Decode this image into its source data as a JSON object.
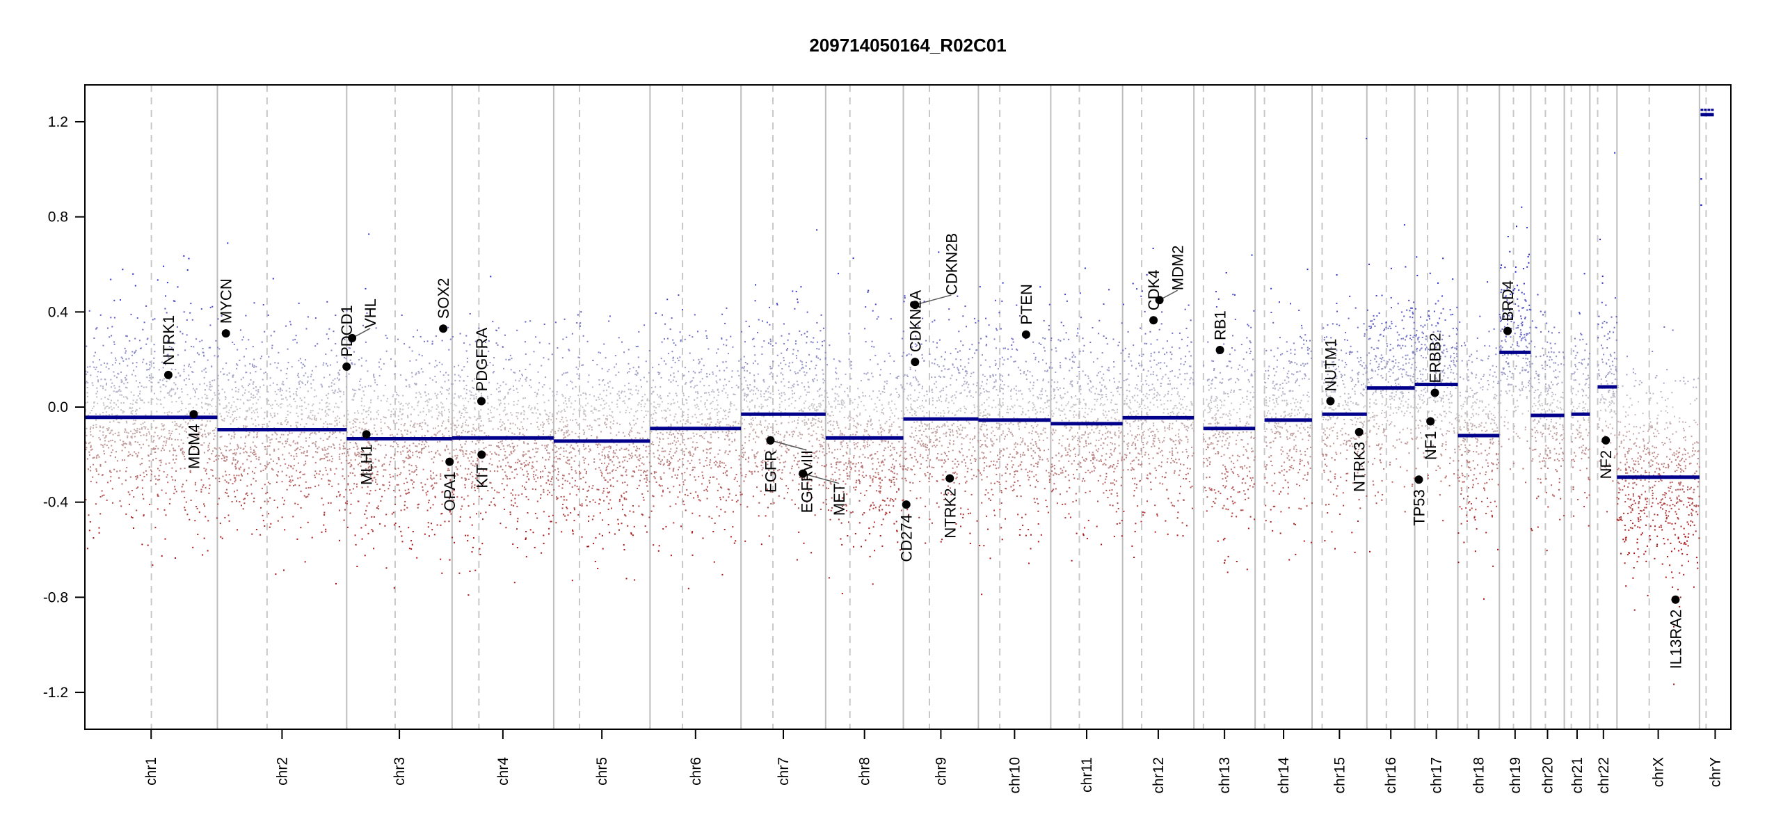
{
  "chart_data": {
    "type": "scatter",
    "title": "209714050164_R02C01",
    "xlabel": "",
    "ylabel": "",
    "ylim": [
      -1.355,
      1.355
    ],
    "yticks": [
      -1.2,
      -0.8,
      -0.4,
      0.0,
      0.4,
      0.8,
      1.2
    ],
    "ytick_labels": [
      "-1.2",
      "-0.8",
      "-0.4",
      "0.0",
      "0.4",
      "0.8",
      "1.2"
    ],
    "grid": false,
    "colors": {
      "gain": "#2828C8",
      "loss": "#AA1414",
      "neutral": "#C8C8C8",
      "segment": "#00008B",
      "gene_point": "#000000",
      "chrom_line": "#BEBEBE"
    },
    "chromosomes": [
      {
        "name": "chr1",
        "length_mb": 249,
        "centromere_mb": 125,
        "segment_mean": -0.043,
        "data_start_mb": 0
      },
      {
        "name": "chr2",
        "length_mb": 243,
        "centromere_mb": 93.3,
        "segment_mean": -0.095,
        "data_start_mb": 0
      },
      {
        "name": "chr3",
        "length_mb": 198,
        "centromere_mb": 91,
        "segment_mean": -0.133,
        "data_start_mb": 0
      },
      {
        "name": "chr4",
        "length_mb": 191,
        "centromere_mb": 50.4,
        "segment_mean": -0.13,
        "data_start_mb": 0
      },
      {
        "name": "chr5",
        "length_mb": 181,
        "centromere_mb": 48.4,
        "segment_mean": -0.143,
        "data_start_mb": 0
      },
      {
        "name": "chr6",
        "length_mb": 171,
        "centromere_mb": 61,
        "segment_mean": -0.09,
        "data_start_mb": 0
      },
      {
        "name": "chr7",
        "length_mb": 159,
        "centromere_mb": 59.9,
        "segment_mean": -0.03,
        "data_start_mb": 0
      },
      {
        "name": "chr8",
        "length_mb": 146,
        "centromere_mb": 45.6,
        "segment_mean": -0.13,
        "data_start_mb": 0
      },
      {
        "name": "chr9",
        "length_mb": 141,
        "centromere_mb": 49,
        "segment_mean": -0.05,
        "data_start_mb": 0
      },
      {
        "name": "chr10",
        "length_mb": 136,
        "centromere_mb": 40.2,
        "segment_mean": -0.055,
        "data_start_mb": 0
      },
      {
        "name": "chr11",
        "length_mb": 135,
        "centromere_mb": 53.7,
        "segment_mean": -0.07,
        "data_start_mb": 0
      },
      {
        "name": "chr12",
        "length_mb": 134,
        "centromere_mb": 35.8,
        "segment_mean": -0.045,
        "data_start_mb": 0
      },
      {
        "name": "chr13",
        "length_mb": 115,
        "centromere_mb": 17.9,
        "segment_mean": -0.09,
        "data_start_mb": 17.9
      },
      {
        "name": "chr14",
        "length_mb": 107,
        "centromere_mb": 17.6,
        "segment_mean": -0.055,
        "data_start_mb": 17.6
      },
      {
        "name": "chr15",
        "length_mb": 103,
        "centromere_mb": 19,
        "segment_mean": -0.03,
        "data_start_mb": 19
      },
      {
        "name": "chr16",
        "length_mb": 90,
        "centromere_mb": 36.6,
        "segment_mean": 0.08,
        "data_start_mb": 0
      },
      {
        "name": "chr17",
        "length_mb": 81,
        "centromere_mb": 24,
        "segment_mean": 0.095,
        "data_start_mb": 0
      },
      {
        "name": "chr18",
        "length_mb": 78,
        "centromere_mb": 17.2,
        "segment_mean": -0.12,
        "data_start_mb": 0
      },
      {
        "name": "chr19",
        "length_mb": 59,
        "centromere_mb": 26.5,
        "segment_mean": 0.23,
        "data_start_mb": 0
      },
      {
        "name": "chr20",
        "length_mb": 63,
        "centromere_mb": 27.5,
        "segment_mean": -0.035,
        "data_start_mb": 0
      },
      {
        "name": "chr21",
        "length_mb": 48,
        "centromere_mb": 13.2,
        "segment_mean": -0.03,
        "data_start_mb": 13.2
      },
      {
        "name": "chr22",
        "length_mb": 51,
        "centromere_mb": 14.7,
        "segment_mean": 0.085,
        "data_start_mb": 14.7
      },
      {
        "name": "chrX",
        "length_mb": 155,
        "centromere_mb": 60.6,
        "segment_mean": -0.295,
        "data_start_mb": 0
      },
      {
        "name": "chrY",
        "length_mb": 59,
        "centromere_mb": 12.5,
        "segment_mean": 1.23,
        "segment_mean_2": 1.25,
        "data_start_mb": 2,
        "data_end_mb": 27
      }
    ],
    "genes": [
      {
        "name": "NTRK1",
        "chrom": "chr1",
        "pos_mb": 156.8,
        "value": 0.135
      },
      {
        "name": "MDM4",
        "chrom": "chr1",
        "pos_mb": 204.5,
        "value": -0.03
      },
      {
        "name": "MYCN",
        "chrom": "chr2",
        "pos_mb": 16,
        "value": 0.31
      },
      {
        "name": "PDCD1",
        "chrom": "chr2",
        "pos_mb": 242.8,
        "value": 0.17
      },
      {
        "name": "VHL",
        "chrom": "chr3",
        "pos_mb": 10.2,
        "value": 0.29
      },
      {
        "name": "MLH1",
        "chrom": "chr3",
        "pos_mb": 37,
        "value": -0.115
      },
      {
        "name": "SOX2",
        "chrom": "chr3",
        "pos_mb": 181.4,
        "value": 0.33
      },
      {
        "name": "OPA1",
        "chrom": "chr3",
        "pos_mb": 193.3,
        "value": -0.23
      },
      {
        "name": "PDGFRA",
        "chrom": "chr4",
        "pos_mb": 55.1,
        "value": 0.025
      },
      {
        "name": "KIT",
        "chrom": "chr4",
        "pos_mb": 55.5,
        "value": -0.2
      },
      {
        "name": "EGFR",
        "chrom": "chr7",
        "pos_mb": 55.2,
        "value": -0.14
      },
      {
        "name": "EGFRvIII",
        "chrom": "chr7",
        "pos_mb": 55.2,
        "value": -0.14
      },
      {
        "name": "MET",
        "chrom": "chr7",
        "pos_mb": 116.3,
        "value": -0.28
      },
      {
        "name": "CD274",
        "chrom": "chr9",
        "pos_mb": 5.5,
        "value": -0.41
      },
      {
        "name": "CDKN2A",
        "chrom": "chr9",
        "pos_mb": 21.97,
        "value": 0.19
      },
      {
        "name": "CDKN2B",
        "chrom": "chr9",
        "pos_mb": 22.0,
        "value": 0.43
      },
      {
        "name": "NTRK2",
        "chrom": "chr9",
        "pos_mb": 87.3,
        "value": -0.3
      },
      {
        "name": "PTEN",
        "chrom": "chr10",
        "pos_mb": 89.6,
        "value": 0.305
      },
      {
        "name": "CDK4",
        "chrom": "chr12",
        "pos_mb": 58.1,
        "value": 0.365
      },
      {
        "name": "MDM2",
        "chrom": "chr12",
        "pos_mb": 69.2,
        "value": 0.45
      },
      {
        "name": "RB1",
        "chrom": "chr13",
        "pos_mb": 48.9,
        "value": 0.24
      },
      {
        "name": "NUTM1",
        "chrom": "chr15",
        "pos_mb": 34.6,
        "value": 0.025
      },
      {
        "name": "NTRK3",
        "chrom": "chr15",
        "pos_mb": 88.5,
        "value": -0.105
      },
      {
        "name": "TP53",
        "chrom": "chr17",
        "pos_mb": 7.6,
        "value": -0.305
      },
      {
        "name": "NF1",
        "chrom": "chr17",
        "pos_mb": 29.5,
        "value": -0.06
      },
      {
        "name": "ERBB2",
        "chrom": "chr17",
        "pos_mb": 37.8,
        "value": 0.06
      },
      {
        "name": "BRD4",
        "chrom": "chr19",
        "pos_mb": 15.4,
        "value": 0.32
      },
      {
        "name": "NF2",
        "chrom": "chr22",
        "pos_mb": 30,
        "value": -0.14
      },
      {
        "name": "IL13RA2",
        "chrom": "chrX",
        "pos_mb": 110,
        "value": -0.81
      }
    ],
    "probe_noise_sd": 0.2,
    "probes_per_mb": 4
  }
}
